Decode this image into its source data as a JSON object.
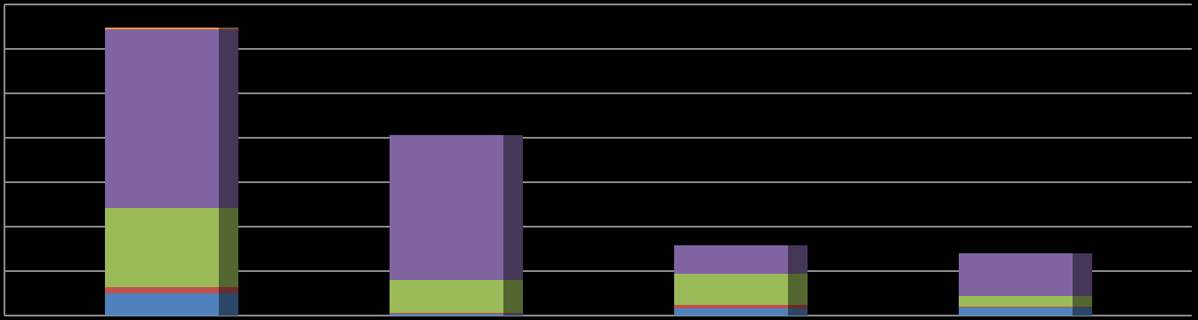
{
  "chart_data": {
    "type": "stacked-bar-3d",
    "categories": [
      null,
      null,
      null,
      null
    ],
    "series": [
      {
        "color": "#4f81bd",
        "values": [
          0.5,
          0.04,
          0.16,
          0.18
        ]
      },
      {
        "color": "#c0504d",
        "values": [
          0.14,
          0.02,
          0.08,
          0.02
        ]
      },
      {
        "color": "#9bbb59",
        "values": [
          1.78,
          0.74,
          0.7,
          0.24
        ]
      },
      {
        "color": "#8064a2",
        "values": [
          4.02,
          3.26,
          0.64,
          0.96
        ]
      },
      {
        "color": "#f79646",
        "values": [
          0.04,
          0,
          0,
          0
        ]
      }
    ],
    "ylim": [
      0,
      7
    ],
    "yticks": [
      0,
      1,
      2,
      3,
      4,
      5,
      6,
      7
    ],
    "grid": true
  }
}
